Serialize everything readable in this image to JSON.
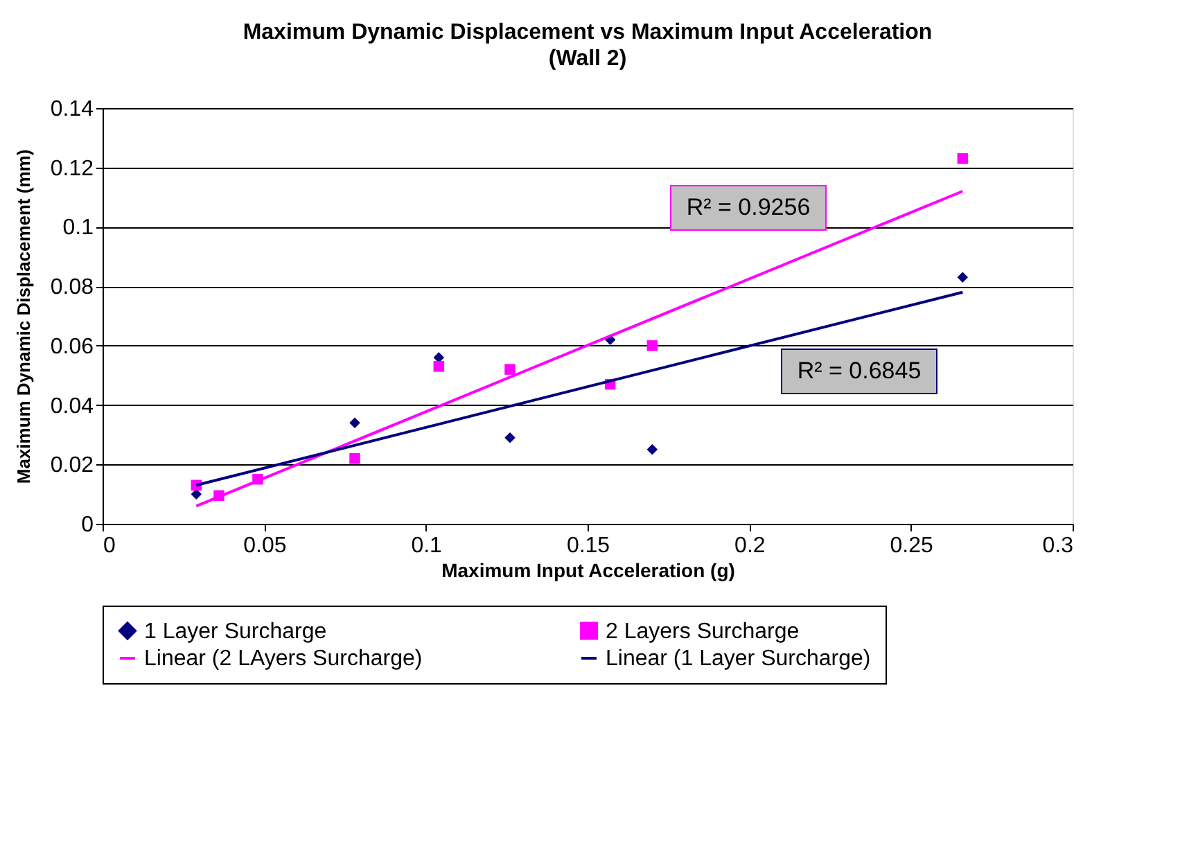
{
  "chart_data": {
    "type": "scatter",
    "title": "Maximum Dynamic Displacement vs Maximum Input Acceleration",
    "subtitle": "(Wall 2)",
    "xlabel": "Maximum Input Acceleration (g)",
    "ylabel": "Maximum Dynamic Displacement (mm)",
    "series": [
      {
        "name": "1 Layer Surcharge",
        "marker": "diamond",
        "color": "#000080",
        "x": [
          0.029,
          0.078,
          0.104,
          0.126,
          0.157,
          0.17,
          0.266
        ],
        "values": [
          0.01,
          0.034,
          0.056,
          0.029,
          0.062,
          0.025,
          0.083
        ]
      },
      {
        "name": "2 Layers Surcharge",
        "marker": "square",
        "color": "#ff00ff",
        "x": [
          0.029,
          0.036,
          0.048,
          0.078,
          0.104,
          0.126,
          0.157,
          0.17,
          0.266
        ],
        "values": [
          0.013,
          0.0095,
          0.015,
          0.022,
          0.053,
          0.052,
          0.047,
          0.06,
          0.123
        ]
      },
      {
        "name": "Linear (2 LAyers Surcharge)",
        "type": "line",
        "marker": "none",
        "color": "#ff00ff",
        "x": [
          0.029,
          0.266
        ],
        "values": [
          0.006,
          0.112
        ]
      },
      {
        "name": "Linear (1 Layer Surcharge)",
        "type": "line",
        "marker": "none",
        "color": "#000080",
        "x": [
          0.029,
          0.266
        ],
        "values": [
          0.013,
          0.078
        ]
      }
    ],
    "annotations": [
      "R² = 0.9256",
      "R² = 0.6845"
    ],
    "xlim": [
      0,
      0.3
    ],
    "xticks": [
      0,
      0.05,
      0.1,
      0.15,
      0.2,
      0.25,
      0.3
    ],
    "ylim": [
      0,
      0.14
    ],
    "yticks": [
      0,
      0.02,
      0.04,
      0.06,
      0.08,
      0.1,
      0.12,
      0.14
    ],
    "grid": "y",
    "legend": "bottom"
  }
}
